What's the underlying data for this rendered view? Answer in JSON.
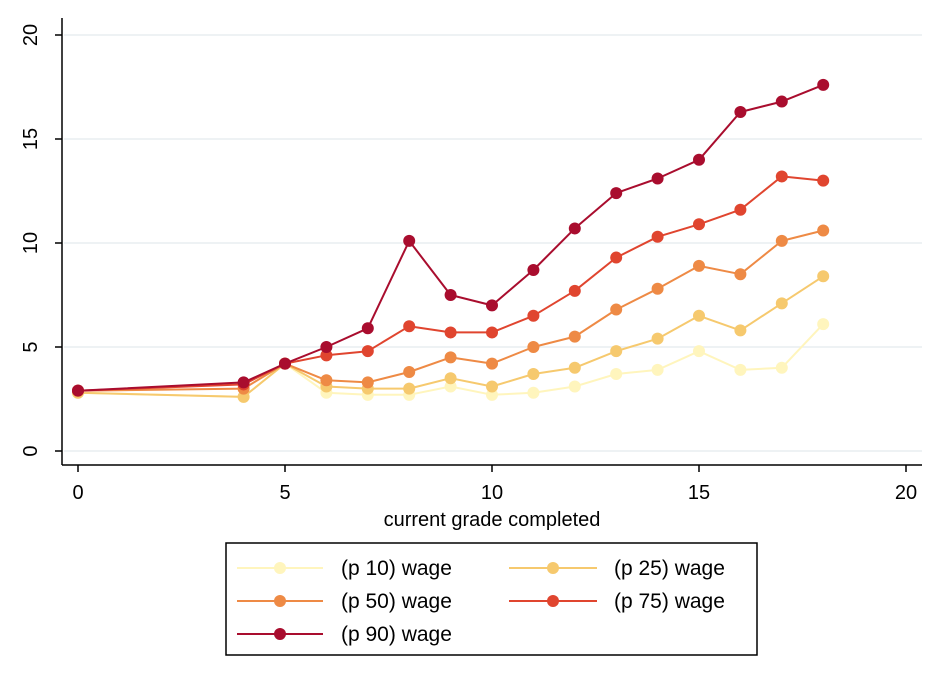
{
  "chart_data": {
    "type": "line",
    "title": "",
    "xlabel": "current grade completed",
    "ylabel": "",
    "xlim": [
      0,
      20
    ],
    "ylim": [
      0,
      20
    ],
    "xticks": [
      0,
      5,
      10,
      15,
      20
    ],
    "yticks": [
      0,
      5,
      10,
      15,
      20
    ],
    "grid": "horizontal",
    "legend_position": "bottom",
    "x": [
      0,
      4,
      5,
      6,
      7,
      8,
      9,
      10,
      11,
      12,
      13,
      14,
      15,
      16,
      17,
      18
    ],
    "series": [
      {
        "name": "(p 10) wage",
        "color": "#fff5bd",
        "values": [
          2.8,
          2.6,
          4.2,
          2.8,
          2.7,
          2.7,
          3.1,
          2.7,
          2.8,
          3.1,
          3.7,
          3.9,
          4.8,
          3.9,
          4.0,
          6.1
        ]
      },
      {
        "name": "(p 25) wage",
        "color": "#f6c96e",
        "values": [
          2.8,
          2.6,
          4.2,
          3.1,
          3.0,
          3.0,
          3.5,
          3.1,
          3.7,
          4.0,
          4.8,
          5.4,
          6.5,
          5.8,
          7.1,
          8.4
        ]
      },
      {
        "name": "(p 50) wage",
        "color": "#ee8a45",
        "values": [
          2.9,
          3.0,
          4.2,
          3.4,
          3.3,
          3.8,
          4.5,
          4.2,
          5.0,
          5.5,
          6.8,
          7.8,
          8.9,
          8.5,
          10.1,
          10.6
        ]
      },
      {
        "name": "(p 75) wage",
        "color": "#e0452f",
        "values": [
          2.9,
          3.2,
          4.2,
          4.6,
          4.8,
          6.0,
          5.7,
          5.7,
          6.5,
          7.7,
          9.3,
          10.3,
          10.9,
          11.6,
          13.2,
          13.0
        ]
      },
      {
        "name": "(p 90) wage",
        "color": "#a90d2e",
        "values": [
          2.9,
          3.3,
          4.2,
          5.0,
          5.9,
          10.1,
          7.5,
          7.0,
          8.7,
          10.7,
          12.4,
          13.1,
          14.0,
          16.3,
          16.8,
          17.6
        ]
      }
    ]
  }
}
